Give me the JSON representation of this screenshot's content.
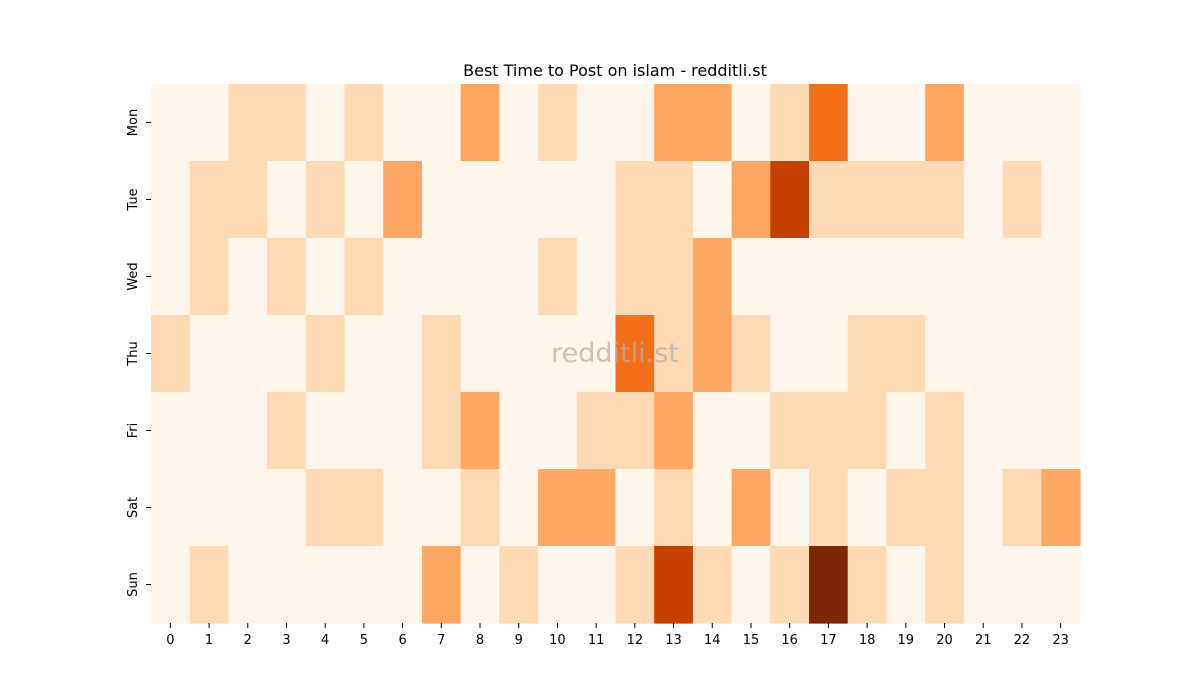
{
  "chart_data": {
    "type": "heatmap",
    "title": "Best Time to Post on islam - redditli.st",
    "watermark": "redditli.st",
    "x_categories": [
      "0",
      "1",
      "2",
      "3",
      "4",
      "5",
      "6",
      "7",
      "8",
      "9",
      "10",
      "11",
      "12",
      "13",
      "14",
      "15",
      "16",
      "17",
      "18",
      "19",
      "20",
      "21",
      "22",
      "23"
    ],
    "y_categories": [
      "Mon",
      "Tue",
      "Wed",
      "Thu",
      "Fri",
      "Sat",
      "Sun"
    ],
    "colormap": "Oranges",
    "value_range": [
      0,
      5
    ],
    "values": [
      [
        0,
        0,
        1,
        1,
        0,
        1,
        0,
        0,
        2,
        0,
        1,
        0,
        0,
        2,
        2,
        0,
        1,
        3,
        0,
        0,
        2,
        0,
        0,
        0
      ],
      [
        0,
        1,
        1,
        0,
        1,
        0,
        2,
        0,
        0,
        0,
        0,
        0,
        1,
        1,
        0,
        2,
        4,
        1,
        1,
        1,
        1,
        0,
        1,
        0
      ],
      [
        0,
        1,
        0,
        1,
        0,
        1,
        0,
        0,
        0,
        0,
        1,
        0,
        1,
        1,
        2,
        0,
        0,
        0,
        0,
        0,
        0,
        0,
        0,
        0
      ],
      [
        1,
        0,
        0,
        0,
        1,
        0,
        0,
        1,
        0,
        0,
        0,
        0,
        3,
        1,
        2,
        1,
        0,
        0,
        1,
        1,
        0,
        0,
        0,
        0
      ],
      [
        0,
        0,
        0,
        1,
        0,
        0,
        0,
        1,
        2,
        0,
        0,
        1,
        1,
        2,
        0,
        0,
        1,
        1,
        1,
        0,
        1,
        0,
        0,
        0
      ],
      [
        0,
        0,
        0,
        0,
        1,
        1,
        0,
        0,
        1,
        0,
        2,
        2,
        0,
        1,
        0,
        2,
        0,
        1,
        0,
        1,
        1,
        0,
        1,
        2
      ],
      [
        0,
        1,
        0,
        0,
        0,
        0,
        0,
        2,
        0,
        1,
        0,
        0,
        1,
        4,
        1,
        0,
        1,
        5,
        1,
        0,
        1,
        0,
        0,
        0
      ]
    ],
    "colors": {
      "0": "#fff5eb",
      "1": "#fdd9b4",
      "2": "#fda762",
      "3": "#f3701b",
      "4": "#c54102",
      "5": "#7f2704"
    }
  }
}
